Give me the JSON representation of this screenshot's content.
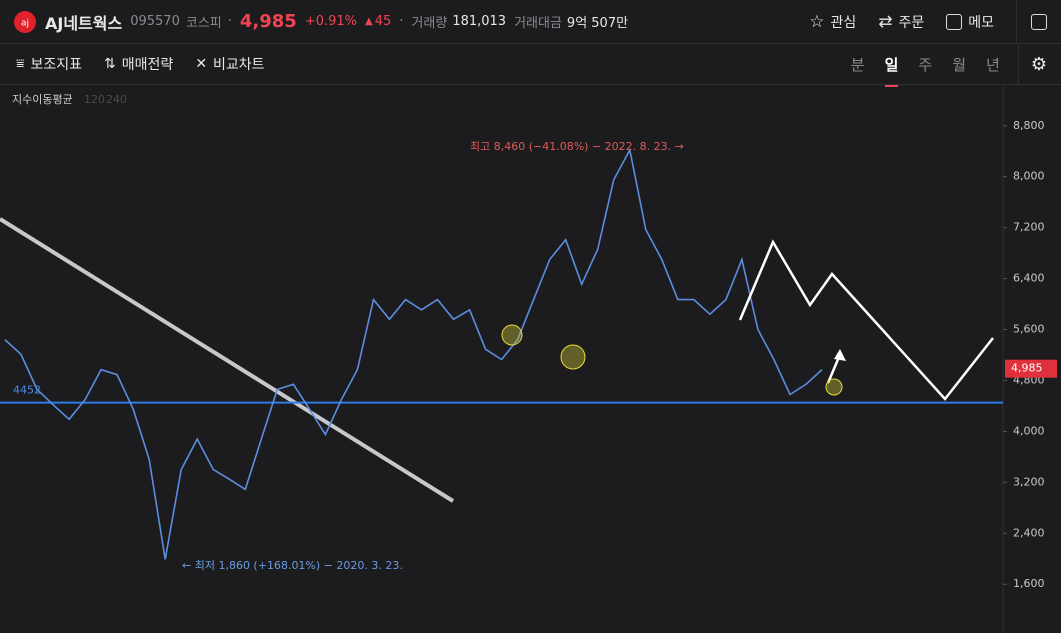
{
  "header": {
    "name": "AJ네트웍스",
    "code": "095570",
    "market": "코스피",
    "price": "4,985",
    "change_pct": "+0.91%",
    "change": "45",
    "volume_label": "거래량",
    "volume": "181,013",
    "amount_label": "거래대금",
    "amount": "9억 507만",
    "actions": [
      "관심",
      "주문",
      "메모"
    ]
  },
  "toolbar": {
    "tools": [
      "보조지표",
      "매매전략",
      "비교차트"
    ],
    "periods": [
      "분",
      "일",
      "주",
      "월",
      "년"
    ]
  },
  "chart_data": {
    "type": "line",
    "color": "#5b8de0",
    "legend_title": "지수이동평균",
    "legend_values": [
      120,
      240
    ],
    "values": [
      5440,
      5210,
      4660,
      4420,
      4190,
      4500,
      4970,
      4890,
      4350,
      3560,
      1990,
      3400,
      3880,
      3400,
      3250,
      3090,
      3880,
      4660,
      4740,
      4350,
      3950,
      4500,
      4970,
      6070,
      5760,
      6070,
      5910,
      6070,
      5760,
      5910,
      5290,
      5130,
      5440,
      6070,
      6700,
      7010,
      6310,
      6860,
      7950,
      8420,
      7170,
      6700,
      6070,
      6070,
      5840,
      6070,
      6700,
      5600,
      5130,
      4580,
      4740,
      4970
    ],
    "ylim": [
      850,
      9440
    ],
    "yticks": [
      {
        "value": 1600,
        "label": "1,600"
      },
      {
        "value": 2400,
        "label": "2,400"
      },
      {
        "value": 3200,
        "label": "3,200"
      },
      {
        "value": 4000,
        "label": "4,000"
      },
      {
        "value": 4800,
        "label": "4,800"
      },
      {
        "value": 5600,
        "label": "5,600"
      },
      {
        "value": 6400,
        "label": "6,400"
      },
      {
        "value": 7200,
        "label": "7,200"
      },
      {
        "value": 8000,
        "label": "8,000"
      },
      {
        "value": 8800,
        "label": "8,800"
      }
    ],
    "hline": 4452,
    "last_price": {
      "value": 4985,
      "label": "4,985"
    },
    "max_annotation": "최고 8,460 (−41.08%) − 2022. 8. 23. →",
    "min_annotation": "← 최저 1,860 (+168.01%) − 2020. 3. 23."
  }
}
